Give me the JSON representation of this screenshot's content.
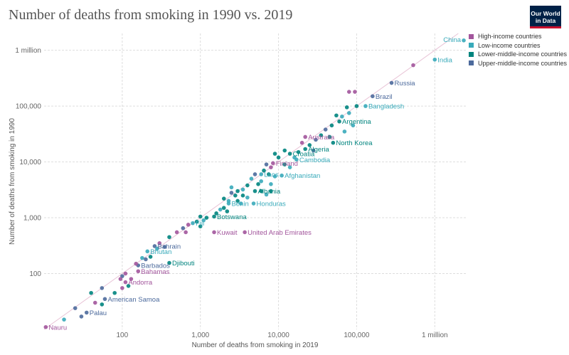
{
  "title": "Number of deaths from smoking in 1990 vs. 2019",
  "logo": {
    "line1": "Our World",
    "line2": "in Data"
  },
  "legend": [
    {
      "key": "high",
      "label": "High-income countries",
      "color": "#a2559c"
    },
    {
      "key": "low",
      "label": "Low-income countries",
      "color": "#38aaba"
    },
    {
      "key": "lowermid",
      "label": "Lower-middle-income countries",
      "color": "#00847e"
    },
    {
      "key": "uppermid",
      "label": "Upper-middle-income countries",
      "color": "#4c6a9c"
    }
  ],
  "chart_data": {
    "type": "scatter",
    "title": "Number of deaths from smoking in 1990 vs. 2019",
    "xlabel": "Number of deaths from smoking in 2019",
    "ylabel": "Number of deaths from smoking in 1990",
    "x_scale": "log",
    "y_scale": "log",
    "xlim": [
      10,
      2500000
    ],
    "ylim": [
      10,
      2000000
    ],
    "x_ticks": [
      {
        "value": 100,
        "label": "100"
      },
      {
        "value": 1000,
        "label": "1,000"
      },
      {
        "value": 10000,
        "label": "10,000"
      },
      {
        "value": 100000,
        "label": "100,000"
      },
      {
        "value": 1000000,
        "label": "1 million"
      }
    ],
    "y_ticks": [
      {
        "value": 100,
        "label": "100"
      },
      {
        "value": 1000,
        "label": "1,000"
      },
      {
        "value": 10000,
        "label": "10,000"
      },
      {
        "value": 100000,
        "label": "100,000"
      },
      {
        "value": 1000000,
        "label": "1 million"
      }
    ],
    "grid": "horizontal dashed",
    "legend_position": "top-right",
    "points": [
      {
        "label": "China",
        "x": 2350000,
        "y": 1500000,
        "group": "low"
      },
      {
        "label": "India",
        "x": 1000000,
        "y": 680000,
        "group": "low"
      },
      {
        "label": "Russia",
        "x": 280000,
        "y": 260000,
        "group": "uppermid"
      },
      {
        "label": "Brazil",
        "x": 160000,
        "y": 150000,
        "group": "uppermid"
      },
      {
        "label": "Bangladesh",
        "x": 130000,
        "y": 100000,
        "group": "low"
      },
      {
        "label": "Argentina",
        "x": 60000,
        "y": 53000,
        "group": "lowermid"
      },
      {
        "label": "Australia",
        "x": 22000,
        "y": 28000,
        "group": "high"
      },
      {
        "label": "Algeria",
        "x": 22000,
        "y": 17000,
        "group": "lowermid"
      },
      {
        "label": "North Korea",
        "x": 50000,
        "y": 22000,
        "group": "lowermid"
      },
      {
        "label": "Croatia",
        "x": 14000,
        "y": 14000,
        "group": "lowermid"
      },
      {
        "label": "Cambodia",
        "x": 17000,
        "y": 11000,
        "group": "low"
      },
      {
        "label": "Finland",
        "x": 8500,
        "y": 9500,
        "group": "high"
      },
      {
        "label": "Laos",
        "x": 6000,
        "y": 6000,
        "group": "low"
      },
      {
        "label": "Afghanistan",
        "x": 11000,
        "y": 5700,
        "group": "low"
      },
      {
        "label": "Albania",
        "x": 5000,
        "y": 3000,
        "group": "lowermid"
      },
      {
        "label": "Benin",
        "x": 2300,
        "y": 1800,
        "group": "low"
      },
      {
        "label": "Honduras",
        "x": 4800,
        "y": 1800,
        "group": "low"
      },
      {
        "label": "Botswana",
        "x": 1500,
        "y": 1050,
        "group": "lowermid"
      },
      {
        "label": "Fiji",
        "x": 800,
        "y": 800,
        "group": "low"
      },
      {
        "label": "Kuwait",
        "x": 1500,
        "y": 550,
        "group": "high"
      },
      {
        "label": "United Arab Emirates",
        "x": 3700,
        "y": 550,
        "group": "high"
      },
      {
        "label": "Bahrain",
        "x": 260,
        "y": 310,
        "group": "uppermid"
      },
      {
        "label": "Bhutan",
        "x": 210,
        "y": 250,
        "group": "low"
      },
      {
        "label": "Djibouti",
        "x": 400,
        "y": 155,
        "group": "lowermid"
      },
      {
        "label": "Barbados",
        "x": 160,
        "y": 140,
        "group": "uppermid"
      },
      {
        "label": "Bahamas",
        "x": 160,
        "y": 110,
        "group": "high"
      },
      {
        "label": "Andorra",
        "x": 110,
        "y": 70,
        "group": "high"
      },
      {
        "label": "American Samoa",
        "x": 60,
        "y": 35,
        "group": "uppermid"
      },
      {
        "label": "Palau",
        "x": 35,
        "y": 20,
        "group": "uppermid"
      },
      {
        "label": "Nauru",
        "x": 10.5,
        "y": 11,
        "group": "high"
      },
      {
        "x": 530000,
        "y": 540000,
        "group": "high"
      },
      {
        "x": 80000,
        "y": 180000,
        "group": "high"
      },
      {
        "x": 95000,
        "y": 180000,
        "group": "high"
      },
      {
        "x": 100000,
        "y": 100000,
        "group": "lowermid"
      },
      {
        "x": 75000,
        "y": 95000,
        "group": "lowermid"
      },
      {
        "x": 80000,
        "y": 75000,
        "group": "low"
      },
      {
        "x": 65000,
        "y": 65000,
        "group": "low"
      },
      {
        "x": 55000,
        "y": 68000,
        "group": "lowermid"
      },
      {
        "x": 48000,
        "y": 45000,
        "group": "lowermid"
      },
      {
        "x": 90000,
        "y": 45000,
        "group": "low"
      },
      {
        "x": 70000,
        "y": 35000,
        "group": "low"
      },
      {
        "x": 40000,
        "y": 38000,
        "group": "uppermid"
      },
      {
        "x": 35000,
        "y": 30000,
        "group": "lowermid"
      },
      {
        "x": 45000,
        "y": 28000,
        "group": "lowermid"
      },
      {
        "x": 30000,
        "y": 25000,
        "group": "uppermid"
      },
      {
        "x": 25000,
        "y": 20000,
        "group": "lowermid"
      },
      {
        "x": 20000,
        "y": 22000,
        "group": "high"
      },
      {
        "x": 28000,
        "y": 16000,
        "group": "uppermid"
      },
      {
        "x": 18000,
        "y": 15000,
        "group": "lowermid"
      },
      {
        "x": 12000,
        "y": 16000,
        "group": "lowermid"
      },
      {
        "x": 16000,
        "y": 12000,
        "group": "low"
      },
      {
        "x": 10000,
        "y": 12000,
        "group": "lowermid"
      },
      {
        "x": 9000,
        "y": 14000,
        "group": "lowermid"
      },
      {
        "x": 12000,
        "y": 9000,
        "group": "lowermid"
      },
      {
        "x": 14000,
        "y": 8000,
        "group": "low"
      },
      {
        "x": 8000,
        "y": 8000,
        "group": "high"
      },
      {
        "x": 7000,
        "y": 9000,
        "group": "uppermid"
      },
      {
        "x": 6500,
        "y": 7000,
        "group": "lowermid"
      },
      {
        "x": 5000,
        "y": 6000,
        "group": "uppermid"
      },
      {
        "x": 4500,
        "y": 5000,
        "group": "low"
      },
      {
        "x": 7500,
        "y": 6000,
        "group": "lowermid"
      },
      {
        "x": 9000,
        "y": 5500,
        "group": "low"
      },
      {
        "x": 6000,
        "y": 4500,
        "group": "low"
      },
      {
        "x": 8000,
        "y": 4000,
        "group": "low"
      },
      {
        "x": 5500,
        "y": 4000,
        "group": "lowermid"
      },
      {
        "x": 4000,
        "y": 3800,
        "group": "lowermid"
      },
      {
        "x": 3500,
        "y": 3200,
        "group": "low"
      },
      {
        "x": 3000,
        "y": 3000,
        "group": "lowermid"
      },
      {
        "x": 2500,
        "y": 3500,
        "group": "low"
      },
      {
        "x": 2500,
        "y": 2800,
        "group": "uppermid"
      },
      {
        "x": 2800,
        "y": 2500,
        "group": "lowermid"
      },
      {
        "x": 3500,
        "y": 2500,
        "group": "lowermid"
      },
      {
        "x": 4000,
        "y": 2300,
        "group": "low"
      },
      {
        "x": 6000,
        "y": 3000,
        "group": "lowermid"
      },
      {
        "x": 8000,
        "y": 3000,
        "group": "lowermid"
      },
      {
        "x": 7000,
        "y": 2600,
        "group": "low"
      },
      {
        "x": 2000,
        "y": 2200,
        "group": "lowermid"
      },
      {
        "x": 2300,
        "y": 2000,
        "group": "low"
      },
      {
        "x": 3000,
        "y": 2000,
        "group": "lowermid"
      },
      {
        "x": 3300,
        "y": 1800,
        "group": "low"
      },
      {
        "x": 2000,
        "y": 1500,
        "group": "lowermid"
      },
      {
        "x": 1800,
        "y": 1400,
        "group": "low"
      },
      {
        "x": 2200,
        "y": 1300,
        "group": "lowermid"
      },
      {
        "x": 1600,
        "y": 1200,
        "group": "lowermid"
      },
      {
        "x": 1200,
        "y": 1000,
        "group": "lowermid"
      },
      {
        "x": 1000,
        "y": 1050,
        "group": "lowermid"
      },
      {
        "x": 1100,
        "y": 900,
        "group": "low"
      },
      {
        "x": 900,
        "y": 850,
        "group": "lowermid"
      },
      {
        "x": 700,
        "y": 750,
        "group": "high"
      },
      {
        "x": 1000,
        "y": 700,
        "group": "lowermid"
      },
      {
        "x": 600,
        "y": 650,
        "group": "uppermid"
      },
      {
        "x": 500,
        "y": 550,
        "group": "high"
      },
      {
        "x": 650,
        "y": 550,
        "group": "high"
      },
      {
        "x": 400,
        "y": 450,
        "group": "lowermid"
      },
      {
        "x": 300,
        "y": 350,
        "group": "high"
      },
      {
        "x": 350,
        "y": 300,
        "group": "uppermid"
      },
      {
        "x": 280,
        "y": 280,
        "group": "low"
      },
      {
        "x": 230,
        "y": 200,
        "group": "lowermid"
      },
      {
        "x": 180,
        "y": 190,
        "group": "low"
      },
      {
        "x": 200,
        "y": 180,
        "group": "uppermid"
      },
      {
        "x": 150,
        "y": 150,
        "group": "high"
      },
      {
        "x": 110,
        "y": 100,
        "group": "high"
      },
      {
        "x": 100,
        "y": 90,
        "group": "uppermid"
      },
      {
        "x": 95,
        "y": 80,
        "group": "high"
      },
      {
        "x": 130,
        "y": 80,
        "group": "high"
      },
      {
        "x": 120,
        "y": 60,
        "group": "lowermid"
      },
      {
        "x": 100,
        "y": 55,
        "group": "high"
      },
      {
        "x": 80,
        "y": 45,
        "group": "lowermid"
      },
      {
        "x": 55,
        "y": 55,
        "group": "uppermid"
      },
      {
        "x": 40,
        "y": 45,
        "group": "lowermid"
      },
      {
        "x": 45,
        "y": 30,
        "group": "high"
      },
      {
        "x": 55,
        "y": 28,
        "group": "lowermid"
      },
      {
        "x": 25,
        "y": 24,
        "group": "uppermid"
      },
      {
        "x": 30,
        "y": 17,
        "group": "uppermid"
      },
      {
        "x": 18,
        "y": 15,
        "group": "low"
      }
    ]
  }
}
